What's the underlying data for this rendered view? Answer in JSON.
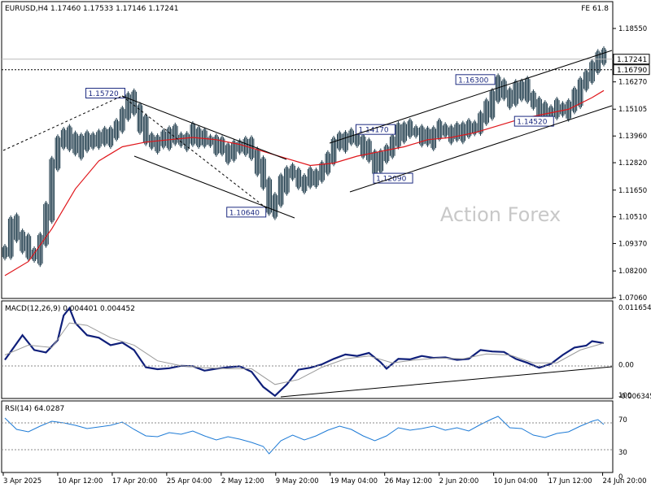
{
  "header": {
    "symbol_info": "EURUSD,H4  1.17460 1.17533 1.17146 1.17241",
    "indicator_tag": "FE 61.8"
  },
  "watermark": "Action Forex",
  "colors": {
    "price_bars": "#1d3a4a",
    "sma_line": "#e0161b",
    "macd_line": "#0f1f7a",
    "signal_line": "#9a9a9a",
    "rsi_line": "#1e7bd6",
    "trend_lines": "#000000",
    "label_border": "#1c2a80",
    "panel_border": "#000000",
    "watermark": "#c8c8c8"
  },
  "chart_data": [
    {
      "type": "candlestick",
      "panel": "price",
      "title": "EURUSD,H4",
      "ohlc_last": {
        "open": 1.1746,
        "high": 1.17533,
        "low": 1.17146,
        "close": 1.17241
      },
      "ylim": [
        1.0706,
        1.1855
      ],
      "y_ticks": [
        "1.18550",
        "1.17241",
        "1.16790",
        "1.16270",
        "1.15105",
        "1.13960",
        "1.12820",
        "1.11650",
        "1.10510",
        "1.09370",
        "1.08200",
        "1.07060"
      ],
      "x_ticks": [
        "3 Apr 2025",
        "10 Apr 12:00",
        "17 Apr 20:00",
        "25 Apr 04:00",
        "2 May 12:00",
        "9 May 20:00",
        "19 May 04:00",
        "26 May 12:00",
        "2 Jun 20:00",
        "10 Jun 04:00",
        "17 Jun 12:00",
        "24 Jun 20:00"
      ],
      "price_series": {
        "name": "EURUSD close",
        "points": [
          [
            0,
            1.091
          ],
          [
            1,
            1.102
          ],
          [
            2,
            1.097
          ],
          [
            3,
            1.094
          ],
          [
            4,
            1.09
          ],
          [
            5,
            1.088
          ],
          [
            6,
            1.095
          ],
          [
            7,
            1.107
          ],
          [
            8,
            1.128
          ],
          [
            9,
            1.136
          ],
          [
            10,
            1.141
          ],
          [
            11,
            1.137
          ],
          [
            12,
            1.134
          ],
          [
            13,
            1.138
          ],
          [
            14,
            1.136
          ],
          [
            15,
            1.139
          ],
          [
            16,
            1.138
          ],
          [
            17,
            1.139
          ],
          [
            18,
            1.141
          ],
          [
            19,
            1.143
          ],
          [
            20,
            1.15
          ],
          [
            21,
            1.155
          ],
          [
            22,
            1.151
          ],
          [
            23,
            1.145
          ],
          [
            24,
            1.139
          ],
          [
            25,
            1.136
          ],
          [
            26,
            1.137
          ],
          [
            27,
            1.138
          ],
          [
            28,
            1.141
          ],
          [
            29,
            1.139
          ],
          [
            30,
            1.137
          ],
          [
            31,
            1.138
          ],
          [
            32,
            1.141
          ],
          [
            33,
            1.139
          ],
          [
            34,
            1.138
          ],
          [
            35,
            1.137
          ],
          [
            36,
            1.135
          ],
          [
            37,
            1.134
          ],
          [
            38,
            1.132
          ],
          [
            39,
            1.134
          ],
          [
            40,
            1.136
          ],
          [
            41,
            1.135
          ],
          [
            42,
            1.132
          ],
          [
            43,
            1.127
          ],
          [
            44,
            1.12
          ],
          [
            45,
            1.108
          ],
          [
            46,
            1.112
          ],
          [
            47,
            1.119
          ],
          [
            48,
            1.124
          ],
          [
            49,
            1.124
          ],
          [
            50,
            1.119
          ],
          [
            51,
            1.12
          ],
          [
            52,
            1.122
          ],
          [
            53,
            1.123
          ],
          [
            54,
            1.125
          ],
          [
            55,
            1.131
          ],
          [
            56,
            1.136
          ],
          [
            57,
            1.137
          ],
          [
            58,
            1.139
          ],
          [
            59,
            1.139
          ],
          [
            60,
            1.137
          ],
          [
            61,
            1.134
          ],
          [
            62,
            1.131
          ],
          [
            63,
            1.127
          ],
          [
            64,
            1.13
          ],
          [
            65,
            1.134
          ],
          [
            66,
            1.137
          ],
          [
            67,
            1.141
          ],
          [
            68,
            1.143
          ],
          [
            69,
            1.142
          ],
          [
            70,
            1.141
          ],
          [
            71,
            1.139
          ],
          [
            72,
            1.138
          ],
          [
            73,
            1.141
          ],
          [
            74,
            1.143
          ],
          [
            75,
            1.141
          ],
          [
            76,
            1.14
          ],
          [
            77,
            1.141
          ],
          [
            78,
            1.143
          ],
          [
            79,
            1.142
          ],
          [
            80,
            1.144
          ],
          [
            81,
            1.147
          ],
          [
            82,
            1.151
          ],
          [
            83,
            1.157
          ],
          [
            84,
            1.162
          ],
          [
            85,
            1.157
          ],
          [
            86,
            1.155
          ],
          [
            87,
            1.159
          ],
          [
            88,
            1.161
          ],
          [
            89,
            1.157
          ],
          [
            90,
            1.153
          ],
          [
            91,
            1.15
          ],
          [
            92,
            1.149
          ],
          [
            93,
            1.15
          ],
          [
            94,
            1.152
          ],
          [
            95,
            1.15
          ],
          [
            96,
            1.152
          ],
          [
            97,
            1.156
          ],
          [
            98,
            1.162
          ],
          [
            99,
            1.164
          ],
          [
            100,
            1.17
          ],
          [
            101,
            1.173
          ],
          [
            102,
            1.1724
          ]
        ]
      },
      "sma_series": {
        "name": "Moving average",
        "points": [
          [
            0,
            1.08
          ],
          [
            4,
            1.086
          ],
          [
            8,
            1.1
          ],
          [
            12,
            1.117
          ],
          [
            16,
            1.129
          ],
          [
            20,
            1.135
          ],
          [
            24,
            1.137
          ],
          [
            28,
            1.138
          ],
          [
            32,
            1.139
          ],
          [
            36,
            1.138
          ],
          [
            40,
            1.136
          ],
          [
            44,
            1.133
          ],
          [
            48,
            1.13
          ],
          [
            52,
            1.127
          ],
          [
            56,
            1.128
          ],
          [
            60,
            1.131
          ],
          [
            64,
            1.133
          ],
          [
            68,
            1.135
          ],
          [
            72,
            1.138
          ],
          [
            76,
            1.139
          ],
          [
            80,
            1.141
          ],
          [
            84,
            1.144
          ],
          [
            88,
            1.147
          ],
          [
            92,
            1.149
          ],
          [
            96,
            1.151
          ],
          [
            100,
            1.156
          ],
          [
            102,
            1.159
          ]
        ]
      },
      "price_labels": [
        {
          "text": "1.15720",
          "x": 21,
          "y": 1.1572
        },
        {
          "text": "1.10640",
          "x": 45,
          "y": 1.1064
        },
        {
          "text": "1.14170",
          "x": 67,
          "y": 1.1417
        },
        {
          "text": "1.12090",
          "x": 70,
          "y": 1.1209
        },
        {
          "text": "1.16300",
          "x": 84,
          "y": 1.163
        },
        {
          "text": "1.14520",
          "x": 94,
          "y": 1.1452
        }
      ],
      "price_tags": [
        {
          "text": "1.17241",
          "y": 1.17241,
          "style": "solid"
        },
        {
          "text": "1.16790",
          "y": 1.1679,
          "style": "dotted"
        }
      ]
    },
    {
      "type": "line",
      "panel": "macd",
      "title": "MACD(12,26,9) 0.004401 0.004452",
      "ylim": [
        -0.006345,
        0.011654
      ],
      "y_ticks": [
        "0.011654",
        "0.00",
        "-0.006345"
      ],
      "series": [
        {
          "name": "MACD",
          "points": [
            [
              0,
              0.001
            ],
            [
              3,
              0.006
            ],
            [
              5,
              0.003
            ],
            [
              7,
              0.0025
            ],
            [
              9,
              0.005
            ],
            [
              10,
              0.01
            ],
            [
              11,
              0.0115
            ],
            [
              12,
              0.0085
            ],
            [
              14,
              0.006
            ],
            [
              16,
              0.0055
            ],
            [
              18,
              0.004
            ],
            [
              20,
              0.0045
            ],
            [
              22,
              0.003
            ],
            [
              24,
              -0.0005
            ],
            [
              26,
              -0.0009
            ],
            [
              28,
              -0.0007
            ],
            [
              30,
              -0.0002
            ],
            [
              32,
              -0.0003
            ],
            [
              34,
              -0.0012
            ],
            [
              36,
              -0.0008
            ],
            [
              38,
              -0.0005
            ],
            [
              40,
              -0.0003
            ],
            [
              42,
              -0.0014
            ],
            [
              44,
              -0.0045
            ],
            [
              46,
              -0.0063
            ],
            [
              48,
              -0.004
            ],
            [
              50,
              -0.001
            ],
            [
              52,
              -0.0006
            ],
            [
              54,
              0.0001
            ],
            [
              56,
              0.0012
            ],
            [
              58,
              0.0021
            ],
            [
              60,
              0.0018
            ],
            [
              62,
              0.0024
            ],
            [
              64,
              0.0005
            ],
            [
              65,
              -0.0008
            ],
            [
              67,
              0.0012
            ],
            [
              69,
              0.0011
            ],
            [
              71,
              0.0018
            ],
            [
              73,
              0.0014
            ],
            [
              75,
              0.0015
            ],
            [
              77,
              0.001
            ],
            [
              79,
              0.0012
            ],
            [
              81,
              0.003
            ],
            [
              83,
              0.0027
            ],
            [
              85,
              0.0026
            ],
            [
              87,
              0.0012
            ],
            [
              89,
              0.0004
            ],
            [
              91,
              -0.0006
            ],
            [
              93,
              0.0002
            ],
            [
              95,
              0.002
            ],
            [
              97,
              0.0035
            ],
            [
              99,
              0.0039
            ],
            [
              100,
              0.0048
            ],
            [
              102,
              0.0044
            ]
          ]
        },
        {
          "name": "Signal",
          "points": [
            [
              0,
              0.002
            ],
            [
              4,
              0.004
            ],
            [
              8,
              0.0035
            ],
            [
              11,
              0.0085
            ],
            [
              14,
              0.008
            ],
            [
              18,
              0.0055
            ],
            [
              22,
              0.004
            ],
            [
              26,
              0.0008
            ],
            [
              30,
              -0.0002
            ],
            [
              34,
              -0.0006
            ],
            [
              38,
              -0.0008
            ],
            [
              42,
              -0.0008
            ],
            [
              46,
              -0.004
            ],
            [
              50,
              -0.003
            ],
            [
              54,
              -0.0005
            ],
            [
              58,
              0.0012
            ],
            [
              62,
              0.0018
            ],
            [
              66,
              0.0004
            ],
            [
              70,
              0.001
            ],
            [
              74,
              0.0014
            ],
            [
              78,
              0.0012
            ],
            [
              82,
              0.0022
            ],
            [
              86,
              0.002
            ],
            [
              90,
              0.0004
            ],
            [
              94,
              0.0004
            ],
            [
              98,
              0.003
            ],
            [
              102,
              0.0044
            ]
          ]
        }
      ]
    },
    {
      "type": "line",
      "panel": "rsi",
      "title": "RSI(14) 64.0287",
      "ylim": [
        0,
        100
      ],
      "y_ticks": [
        "100",
        "70",
        "30",
        "0"
      ],
      "series": [
        {
          "name": "RSI(14)",
          "points": [
            [
              0,
              72
            ],
            [
              2,
              58
            ],
            [
              4,
              55
            ],
            [
              6,
              62
            ],
            [
              8,
              68
            ],
            [
              10,
              66
            ],
            [
              12,
              63
            ],
            [
              14,
              59
            ],
            [
              16,
              61
            ],
            [
              18,
              63
            ],
            [
              20,
              67
            ],
            [
              22,
              58
            ],
            [
              24,
              50
            ],
            [
              26,
              49
            ],
            [
              28,
              54
            ],
            [
              30,
              52
            ],
            [
              32,
              56
            ],
            [
              34,
              50
            ],
            [
              36,
              45
            ],
            [
              38,
              49
            ],
            [
              40,
              46
            ],
            [
              42,
              42
            ],
            [
              44,
              37
            ],
            [
              45,
              28
            ],
            [
              47,
              44
            ],
            [
              49,
              51
            ],
            [
              51,
              45
            ],
            [
              53,
              50
            ],
            [
              55,
              57
            ],
            [
              57,
              62
            ],
            [
              59,
              58
            ],
            [
              61,
              50
            ],
            [
              63,
              44
            ],
            [
              65,
              50
            ],
            [
              67,
              60
            ],
            [
              69,
              57
            ],
            [
              71,
              59
            ],
            [
              73,
              62
            ],
            [
              75,
              57
            ],
            [
              77,
              60
            ],
            [
              79,
              56
            ],
            [
              81,
              64
            ],
            [
              83,
              71
            ],
            [
              84,
              74
            ],
            [
              86,
              60
            ],
            [
              88,
              59
            ],
            [
              90,
              51
            ],
            [
              92,
              48
            ],
            [
              94,
              53
            ],
            [
              96,
              55
            ],
            [
              98,
              62
            ],
            [
              100,
              68
            ],
            [
              101,
              70
            ],
            [
              102,
              64
            ]
          ]
        }
      ]
    }
  ]
}
